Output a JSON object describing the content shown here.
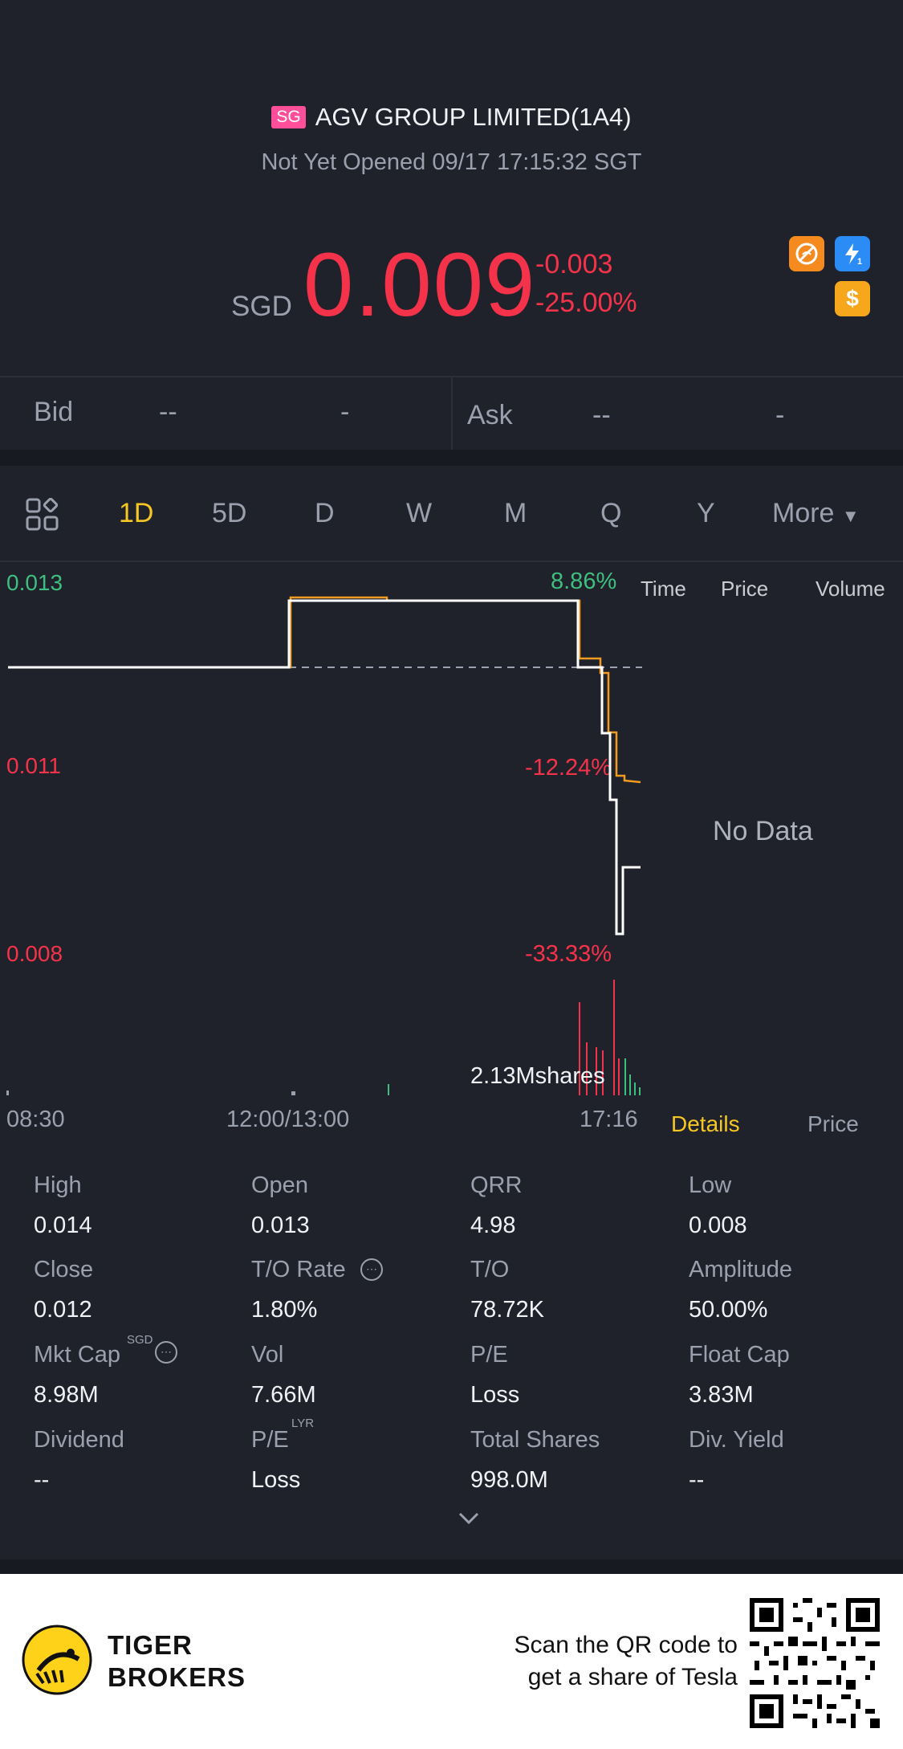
{
  "header": {
    "market_badge": "SG",
    "title": "AGV GROUP LIMITED(1A4)",
    "status": "Not Yet Opened 09/17 17:15:32 SGT",
    "currency": "SGD",
    "price": "0.009",
    "change": "-0.003",
    "change_pct": "-25.00%",
    "icons": [
      "no-margin-icon",
      "level1-lightning-icon",
      "dollar-icon"
    ]
  },
  "bidask": {
    "bid_label": "Bid",
    "bid_price": "--",
    "bid_size": "-",
    "ask_label": "Ask",
    "ask_price": "--",
    "ask_size": "-"
  },
  "tabs": {
    "items": [
      "1D",
      "5D",
      "D",
      "W",
      "M",
      "Q",
      "Y",
      "More"
    ],
    "active": "1D"
  },
  "chart": {
    "y_labels": [
      "0.013",
      "0.011",
      "0.008"
    ],
    "pct_labels": [
      "8.86%",
      "-12.24%",
      "-33.33%"
    ],
    "side_headers": [
      "Time",
      "Price",
      "Volume"
    ],
    "no_data": "No Data",
    "x_labels": [
      "08:30",
      "12:00/13:00",
      "17:16"
    ],
    "volume_label": "2.13Mshares",
    "colors": {
      "price_line": "#ffffff",
      "avg_line": "#f29c1f",
      "up": "#3fbf7f",
      "down": "#f4334b"
    }
  },
  "detail_tabs": {
    "details": "Details",
    "price": "Price"
  },
  "stats": [
    {
      "label": "High",
      "value": "0.014"
    },
    {
      "label": "Open",
      "value": "0.013"
    },
    {
      "label": "QRR",
      "value": "4.98"
    },
    {
      "label": "Low",
      "value": "0.008"
    },
    {
      "label": "Close",
      "value": "0.012"
    },
    {
      "label": "T/O Rate",
      "value": "1.80%"
    },
    {
      "label": "T/O",
      "value": "78.72K"
    },
    {
      "label": "Amplitude",
      "value": "50.00%"
    },
    {
      "label": "Mkt Cap",
      "value": "8.98M"
    },
    {
      "label": "Vol",
      "value": "7.66M"
    },
    {
      "label": "P/E",
      "value": "Loss"
    },
    {
      "label": "Float Cap",
      "value": "3.83M"
    },
    {
      "label": "Dividend",
      "value": "--"
    },
    {
      "label": "P/E",
      "value": "Loss"
    },
    {
      "label": "Total Shares",
      "value": "998.0M"
    },
    {
      "label": "Div. Yield",
      "value": "--"
    }
  ],
  "stat_superscripts": {
    "mkt_cap": "SGD",
    "pe_lyr": "LYR"
  },
  "footer": {
    "brand_line1": "TIGER",
    "brand_line2": "BROKERS",
    "scan_line1": "Scan the QR code to",
    "scan_line2": "get a share of Tesla"
  }
}
